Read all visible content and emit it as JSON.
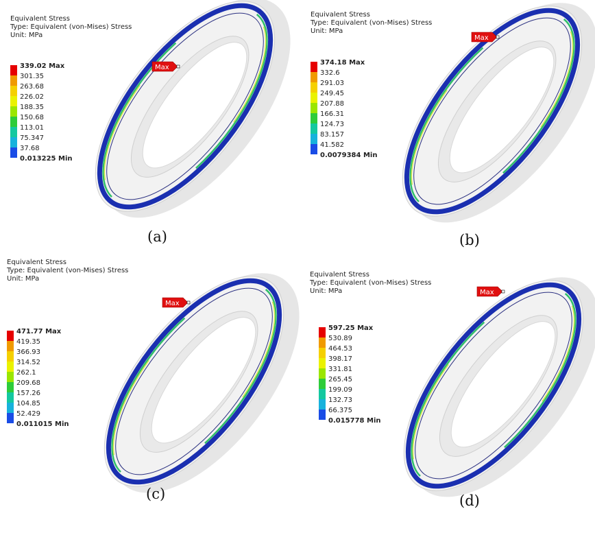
{
  "panels": [
    {
      "header": [
        "Equivalent Stress",
        "Type: Equivalent (von-Mises) Stress",
        "Unit: MPa"
      ],
      "legend": [
        "339.02 Max",
        "301.35",
        "263.68",
        "226.02",
        "188.35",
        "150.68",
        "113.01",
        "75.347",
        "37.68",
        "0.013225 Min"
      ],
      "max_marker": "Max",
      "caption": "(a)"
    },
    {
      "header": [
        "Equivalent Stress",
        "Type: Equivalent (von-Mises) Stress",
        "Unit: MPa"
      ],
      "legend": [
        "374.18 Max",
        "332.6",
        "291.03",
        "249.45",
        "207.88",
        "166.31",
        "124.73",
        "83.157",
        "41.582",
        "0.0079384 Min"
      ],
      "max_marker": "Max",
      "caption": "(b)"
    },
    {
      "header": [
        "Equivalent Stress",
        "Type: Equivalent (von-Mises) Stress",
        "Unit: MPa"
      ],
      "legend": [
        "471.77 Max",
        "419.35",
        "366.93",
        "314.52",
        "262.1",
        "209.68",
        "157.26",
        "104.85",
        "52.429",
        "0.011015 Min"
      ],
      "max_marker": "Max",
      "caption": "(c)"
    },
    {
      "header": [
        "Equivalent Stress",
        "Type: Equivalent (von-Mises) Stress",
        "Unit: MPa"
      ],
      "legend": [
        "597.25 Max",
        "530.89",
        "464.53",
        "398.17",
        "331.81",
        "265.45",
        "199.09",
        "132.73",
        "66.375",
        "0.015778 Min"
      ],
      "max_marker": "Max",
      "caption": "(d)"
    }
  ]
}
